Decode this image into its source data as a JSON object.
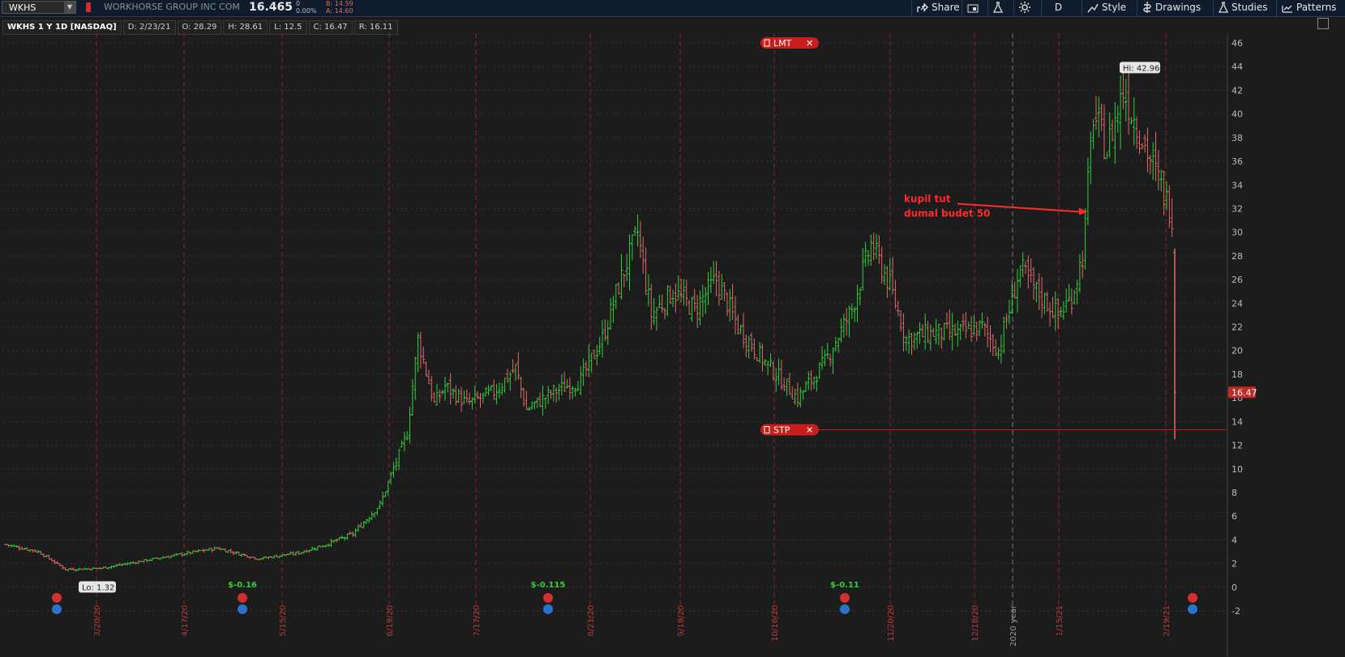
{
  "toolbar": {
    "symbol": "WKHS",
    "company": "WORKHORSE GROUP INC COM",
    "last_price": "16.465",
    "change_top": "0",
    "change_pct": "0.00%",
    "bid": "B: 14.59",
    "ask": "A: 14.60",
    "buttons": {
      "share": "Share",
      "timeframe": "D",
      "style": "Style",
      "drawings": "Drawings",
      "studies": "Studies",
      "patterns": "Patterns"
    }
  },
  "infobar": {
    "title": "WKHS 1 Y 1D [NASDAQ]",
    "date": "D: 2/23/21",
    "open": "O: 28.29",
    "high": "H: 28.61",
    "low": "L: 12.5",
    "close": "C: 16.47",
    "range": "R: 16.11"
  },
  "colors": {
    "up": "#2fd13a",
    "down": "#e26a6a",
    "background": "#1c1c1c",
    "grid": "#333333",
    "vline": "#8b2222",
    "order": "#c81e1e",
    "topbar": "#0e1c2c"
  },
  "chart_data": {
    "type": "ohlc",
    "yaxis": {
      "min": -2,
      "max": 46,
      "ticks": [
        -2,
        0,
        2,
        4,
        6,
        8,
        10,
        12,
        14,
        16,
        18,
        20,
        22,
        24,
        26,
        28,
        30,
        32,
        34,
        36,
        38,
        40,
        42,
        44,
        46
      ]
    },
    "x_labels": [
      "3/20/20",
      "4/17/20",
      "5/15/20",
      "6/19/20",
      "7/17/20",
      "8/21/20",
      "9/18/20",
      "10/16/20",
      "11/20/20",
      "12/18/20",
      "2020 year",
      "1/15/21",
      "2/19/21"
    ],
    "current_price_label": "16.47",
    "hi_label": "Hi: 42.96",
    "lo_label": "Lo: 1.32",
    "orders": [
      {
        "type": "LMT",
        "price": 46,
        "label": "LMT"
      },
      {
        "type": "STP",
        "price": 13.3,
        "label": "STP"
      }
    ],
    "dividends": [
      "$-0.16",
      "$-0.115",
      "$-0.11"
    ],
    "annotation": {
      "lines": [
        "kupil tut",
        "dumal budet 50"
      ],
      "price": 32
    },
    "anchors": [
      [
        0,
        3.6
      ],
      [
        12,
        3.0
      ],
      [
        22,
        1.5
      ],
      [
        35,
        1.6
      ],
      [
        50,
        2.2
      ],
      [
        65,
        2.8
      ],
      [
        78,
        3.3
      ],
      [
        93,
        2.4
      ],
      [
        108,
        2.9
      ],
      [
        118,
        3.6
      ],
      [
        128,
        4.5
      ],
      [
        138,
        7.0
      ],
      [
        148,
        13
      ],
      [
        152,
        21
      ],
      [
        158,
        15.5
      ],
      [
        162,
        17
      ],
      [
        170,
        15.5
      ],
      [
        180,
        16.5
      ],
      [
        188,
        18.5
      ],
      [
        192,
        15
      ],
      [
        202,
        16.5
      ],
      [
        212,
        17.5
      ],
      [
        220,
        21
      ],
      [
        226,
        25.5
      ],
      [
        233,
        30
      ],
      [
        238,
        23
      ],
      [
        246,
        25
      ],
      [
        254,
        23.5
      ],
      [
        262,
        26
      ],
      [
        270,
        22
      ],
      [
        280,
        19
      ],
      [
        292,
        16
      ],
      [
        302,
        19
      ],
      [
        312,
        23.5
      ],
      [
        319,
        29
      ],
      [
        326,
        25.5
      ],
      [
        332,
        21
      ],
      [
        342,
        21.5
      ],
      [
        352,
        21.5
      ],
      [
        360,
        22
      ],
      [
        366,
        20
      ],
      [
        374,
        27
      ],
      [
        380,
        25
      ],
      [
        388,
        23
      ],
      [
        393,
        24.5
      ],
      [
        397,
        28
      ],
      [
        401,
        40
      ],
      [
        406,
        37
      ],
      [
        412,
        42
      ],
      [
        418,
        38.5
      ],
      [
        424,
        35
      ],
      [
        430,
        31.5
      ]
    ],
    "last_bar": {
      "open": 28.29,
      "high": 28.61,
      "low": 12.5,
      "close": 16.47
    }
  }
}
